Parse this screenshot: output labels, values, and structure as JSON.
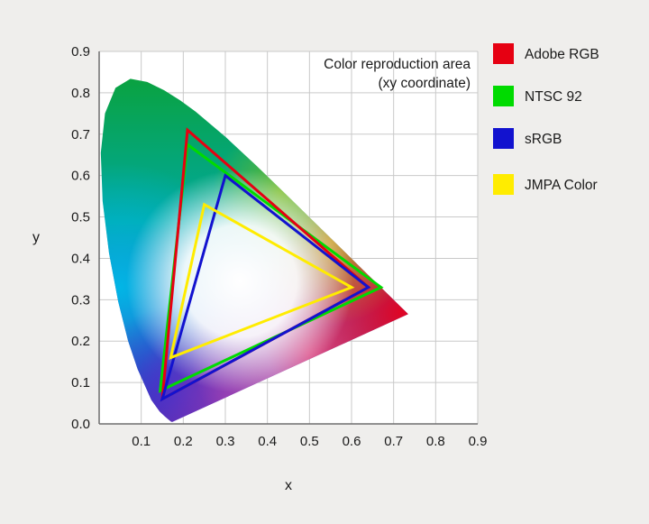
{
  "chart_data": {
    "type": "line",
    "subtype": "cie-1931-chromaticity-gamut-comparison",
    "title": "Color reproduction area",
    "subtitle": "(xy coordinate)",
    "xlabel": "x",
    "ylabel": "y",
    "xlim": [
      0,
      0.9
    ],
    "ylim": [
      0,
      0.9
    ],
    "grid": true,
    "legend_position": "right",
    "x_ticks": [
      "0.1",
      "0.2",
      "0.3",
      "0.4",
      "0.5",
      "0.6",
      "0.7",
      "0.8",
      "0.9"
    ],
    "y_ticks": [
      "0.0",
      "0.1",
      "0.2",
      "0.3",
      "0.4",
      "0.5",
      "0.6",
      "0.7",
      "0.8",
      "0.9"
    ],
    "series": [
      {
        "name": "Adobe RGB",
        "color": "#e60012",
        "vertices": [
          [
            0.64,
            0.33
          ],
          [
            0.21,
            0.71
          ],
          [
            0.15,
            0.06
          ]
        ]
      },
      {
        "name": "NTSC 92",
        "color": "#00db00",
        "vertices": [
          [
            0.67,
            0.33
          ],
          [
            0.21,
            0.675
          ],
          [
            0.145,
            0.08
          ]
        ]
      },
      {
        "name": "sRGB",
        "color": "#1212cf",
        "vertices": [
          [
            0.64,
            0.33
          ],
          [
            0.3,
            0.6
          ],
          [
            0.15,
            0.06
          ]
        ]
      },
      {
        "name": "JMPA Color",
        "color": "#ffec00",
        "vertices": [
          [
            0.6,
            0.33
          ],
          [
            0.25,
            0.53
          ],
          [
            0.17,
            0.16
          ]
        ]
      }
    ],
    "draw_order": [
      1,
      0,
      2,
      3
    ],
    "spectral_locus": [
      [
        0.1741,
        0.005
      ],
      [
        0.1714,
        0.0051
      ],
      [
        0.1644,
        0.0109
      ],
      [
        0.1566,
        0.0177
      ],
      [
        0.144,
        0.0297
      ],
      [
        0.1241,
        0.0578
      ],
      [
        0.0913,
        0.1327
      ],
      [
        0.0687,
        0.2007
      ],
      [
        0.0454,
        0.295
      ],
      [
        0.0235,
        0.4127
      ],
      [
        0.0082,
        0.5384
      ],
      [
        0.0039,
        0.6548
      ],
      [
        0.0139,
        0.7502
      ],
      [
        0.0389,
        0.812
      ],
      [
        0.0743,
        0.8338
      ],
      [
        0.1142,
        0.8262
      ],
      [
        0.1547,
        0.8059
      ],
      [
        0.1929,
        0.7816
      ],
      [
        0.2296,
        0.7543
      ],
      [
        0.3016,
        0.6923
      ],
      [
        0.3731,
        0.6245
      ],
      [
        0.4441,
        0.5547
      ],
      [
        0.5125,
        0.4866
      ],
      [
        0.5752,
        0.4242
      ],
      [
        0.627,
        0.3725
      ],
      [
        0.6658,
        0.334
      ],
      [
        0.6915,
        0.3083
      ],
      [
        0.7079,
        0.292
      ],
      [
        0.719,
        0.2809
      ],
      [
        0.726,
        0.274
      ],
      [
        0.7347,
        0.2653
      ]
    ]
  }
}
